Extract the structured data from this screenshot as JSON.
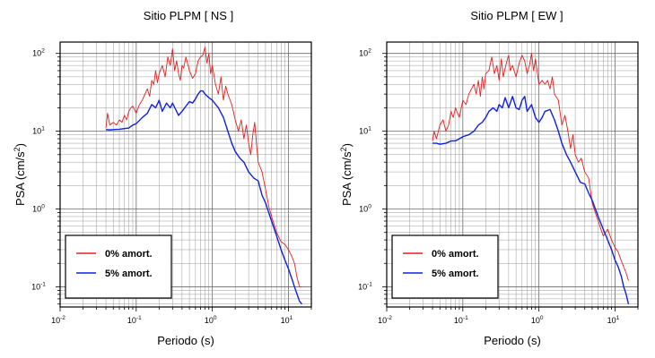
{
  "chart_data": [
    {
      "type": "line",
      "title": "Sitio PLPM [ NS ]",
      "xlabel": "Periodo (s)",
      "ylabel_main": "PSA (cm/s",
      "ylabel_sup": "2",
      "ylabel_end": ")",
      "x_scale": "log",
      "y_scale": "log",
      "xlim": [
        0.01,
        20
      ],
      "ylim": [
        0.055,
        140
      ],
      "x_ticks": [
        {
          "value": 0.01,
          "base": "10",
          "exp": "-2"
        },
        {
          "value": 0.1,
          "base": "10",
          "exp": "-1"
        },
        {
          "value": 1,
          "base": "10",
          "exp": "0"
        },
        {
          "value": 10,
          "base": "10",
          "exp": "1"
        }
      ],
      "y_ticks": [
        {
          "value": 0.1,
          "base": "10",
          "exp": "-1"
        },
        {
          "value": 1,
          "base": "10",
          "exp": "0"
        },
        {
          "value": 10,
          "base": "10",
          "exp": "1"
        },
        {
          "value": 100,
          "base": "10",
          "exp": "2"
        }
      ],
      "grid": true,
      "legend_position": "bottom-left",
      "series": [
        {
          "name": "0% amort.",
          "color": "#e02020",
          "x": [
            0.04,
            0.042,
            0.045,
            0.05,
            0.055,
            0.06,
            0.065,
            0.07,
            0.075,
            0.08,
            0.085,
            0.09,
            0.1,
            0.11,
            0.12,
            0.13,
            0.14,
            0.15,
            0.16,
            0.17,
            0.18,
            0.19,
            0.2,
            0.22,
            0.24,
            0.26,
            0.28,
            0.3,
            0.32,
            0.34,
            0.36,
            0.38,
            0.4,
            0.42,
            0.45,
            0.5,
            0.55,
            0.6,
            0.65,
            0.7,
            0.75,
            0.8,
            0.85,
            0.9,
            0.95,
            1.0,
            1.1,
            1.2,
            1.3,
            1.4,
            1.5,
            1.6,
            1.8,
            2.0,
            2.2,
            2.4,
            2.6,
            2.8,
            3.0,
            3.2,
            3.4,
            3.6,
            3.8,
            4.0,
            4.5,
            5.0,
            5.5,
            6.0,
            7.0,
            8.0,
            9.0,
            10.0,
            11.0,
            12.0,
            13.0,
            14.0,
            15.0
          ],
          "y": [
            11,
            17,
            12,
            13,
            12,
            14,
            13,
            16,
            14,
            18,
            20,
            21,
            17,
            22,
            25,
            30,
            35,
            28,
            45,
            40,
            60,
            42,
            55,
            70,
            50,
            90,
            70,
            115,
            60,
            80,
            55,
            45,
            70,
            65,
            90,
            60,
            48,
            55,
            80,
            90,
            95,
            120,
            75,
            100,
            55,
            70,
            40,
            30,
            50,
            25,
            38,
            30,
            22,
            14,
            10,
            14,
            8,
            12,
            7,
            5,
            9,
            13,
            7,
            4,
            3,
            1.8,
            1.1,
            0.8,
            0.5,
            0.38,
            0.35,
            0.3,
            0.25,
            0.2,
            0.13,
            0.1,
            0.1
          ]
        },
        {
          "name": "5% amort.",
          "color": "#1020e0",
          "x": [
            0.04,
            0.045,
            0.05,
            0.06,
            0.07,
            0.08,
            0.09,
            0.1,
            0.12,
            0.14,
            0.16,
            0.18,
            0.2,
            0.22,
            0.25,
            0.28,
            0.3,
            0.33,
            0.36,
            0.4,
            0.45,
            0.5,
            0.55,
            0.6,
            0.65,
            0.7,
            0.75,
            0.8,
            0.9,
            1.0,
            1.2,
            1.4,
            1.6,
            1.8,
            2.0,
            2.3,
            2.6,
            3.0,
            3.5,
            4.0,
            4.5,
            5.0,
            6.0,
            7.0,
            8.0,
            9.0,
            10.0,
            11.0,
            12.0,
            13.0,
            14.0,
            15.0
          ],
          "y": [
            10.5,
            10.4,
            10.5,
            10.6,
            10.8,
            11,
            12,
            12.5,
            15,
            17,
            22,
            20,
            25,
            18,
            23,
            20,
            23,
            19,
            16,
            18,
            21,
            24,
            23,
            26,
            30,
            33,
            33,
            30,
            27,
            25,
            20,
            15,
            10,
            7,
            5.5,
            4.5,
            4,
            3,
            2.5,
            2.3,
            1.5,
            1.2,
            0.7,
            0.45,
            0.3,
            0.22,
            0.17,
            0.13,
            0.1,
            0.08,
            0.065,
            0.06
          ]
        }
      ]
    },
    {
      "type": "line",
      "title": "Sitio PLPM [ EW ]",
      "xlabel": "Periodo (s)",
      "ylabel_main": "PSA (cm/s",
      "ylabel_sup": "2",
      "ylabel_end": ")",
      "x_scale": "log",
      "y_scale": "log",
      "xlim": [
        0.01,
        20
      ],
      "ylim": [
        0.055,
        140
      ],
      "x_ticks": [
        {
          "value": 0.01,
          "base": "10",
          "exp": "-2"
        },
        {
          "value": 0.1,
          "base": "10",
          "exp": "-1"
        },
        {
          "value": 1,
          "base": "10",
          "exp": "0"
        },
        {
          "value": 10,
          "base": "10",
          "exp": "1"
        }
      ],
      "y_ticks": [
        {
          "value": 0.1,
          "base": "10",
          "exp": "-1"
        },
        {
          "value": 1,
          "base": "10",
          "exp": "0"
        },
        {
          "value": 10,
          "base": "10",
          "exp": "1"
        },
        {
          "value": 100,
          "base": "10",
          "exp": "2"
        }
      ],
      "grid": true,
      "legend_position": "bottom-left",
      "series": [
        {
          "name": "0% amort.",
          "color": "#e02020",
          "x": [
            0.04,
            0.042,
            0.045,
            0.05,
            0.055,
            0.06,
            0.065,
            0.07,
            0.075,
            0.08,
            0.09,
            0.1,
            0.11,
            0.12,
            0.13,
            0.14,
            0.15,
            0.16,
            0.17,
            0.18,
            0.19,
            0.2,
            0.22,
            0.24,
            0.26,
            0.28,
            0.3,
            0.32,
            0.34,
            0.36,
            0.38,
            0.4,
            0.42,
            0.45,
            0.5,
            0.55,
            0.6,
            0.65,
            0.7,
            0.75,
            0.8,
            0.85,
            0.9,
            1.0,
            1.1,
            1.2,
            1.3,
            1.4,
            1.5,
            1.6,
            1.8,
            2.0,
            2.2,
            2.4,
            2.6,
            2.8,
            3.0,
            3.3,
            3.6,
            4.0,
            4.5,
            5.0,
            5.5,
            6.0,
            7.0,
            8.0,
            9.0,
            10.0,
            11.0,
            12.0,
            13.0,
            14.0,
            15.0
          ],
          "y": [
            7.5,
            10,
            8,
            12,
            14,
            10,
            12,
            18,
            15,
            20,
            15,
            25,
            22,
            30,
            35,
            40,
            30,
            45,
            28,
            50,
            35,
            55,
            60,
            90,
            55,
            70,
            45,
            85,
            50,
            65,
            80,
            95,
            60,
            70,
            50,
            75,
            95,
            80,
            55,
            70,
            100,
            60,
            85,
            40,
            45,
            40,
            45,
            35,
            50,
            30,
            25,
            12,
            16,
            10,
            6,
            9,
            5,
            4,
            4.5,
            3,
            2.5,
            1.2,
            0.9,
            0.7,
            0.45,
            0.55,
            0.4,
            0.32,
            0.28,
            0.22,
            0.18,
            0.15,
            0.12
          ]
        },
        {
          "name": "5% amort.",
          "color": "#1020e0",
          "x": [
            0.04,
            0.045,
            0.05,
            0.06,
            0.07,
            0.08,
            0.09,
            0.1,
            0.12,
            0.14,
            0.16,
            0.18,
            0.2,
            0.22,
            0.25,
            0.28,
            0.3,
            0.33,
            0.36,
            0.4,
            0.45,
            0.5,
            0.55,
            0.6,
            0.65,
            0.7,
            0.8,
            0.9,
            1.0,
            1.1,
            1.2,
            1.4,
            1.6,
            1.8,
            2.0,
            2.3,
            2.6,
            3.0,
            3.5,
            4.0,
            4.5,
            5.0,
            6.0,
            7.0,
            8.0,
            9.0,
            10.0,
            11.0,
            12.0,
            13.0,
            14.0,
            15.0
          ],
          "y": [
            7,
            7,
            6.8,
            7,
            7.5,
            7.5,
            8,
            8.5,
            9,
            10,
            12,
            13,
            15,
            18,
            20,
            18,
            22,
            20,
            27,
            20,
            28,
            20,
            19,
            25,
            28,
            18,
            22,
            15,
            13,
            15,
            18,
            19,
            14,
            10,
            7,
            5,
            4,
            3,
            2.2,
            2.1,
            1.6,
            1.3,
            0.8,
            0.55,
            0.4,
            0.3,
            0.22,
            0.18,
            0.14,
            0.1,
            0.08,
            0.06
          ]
        }
      ]
    }
  ]
}
